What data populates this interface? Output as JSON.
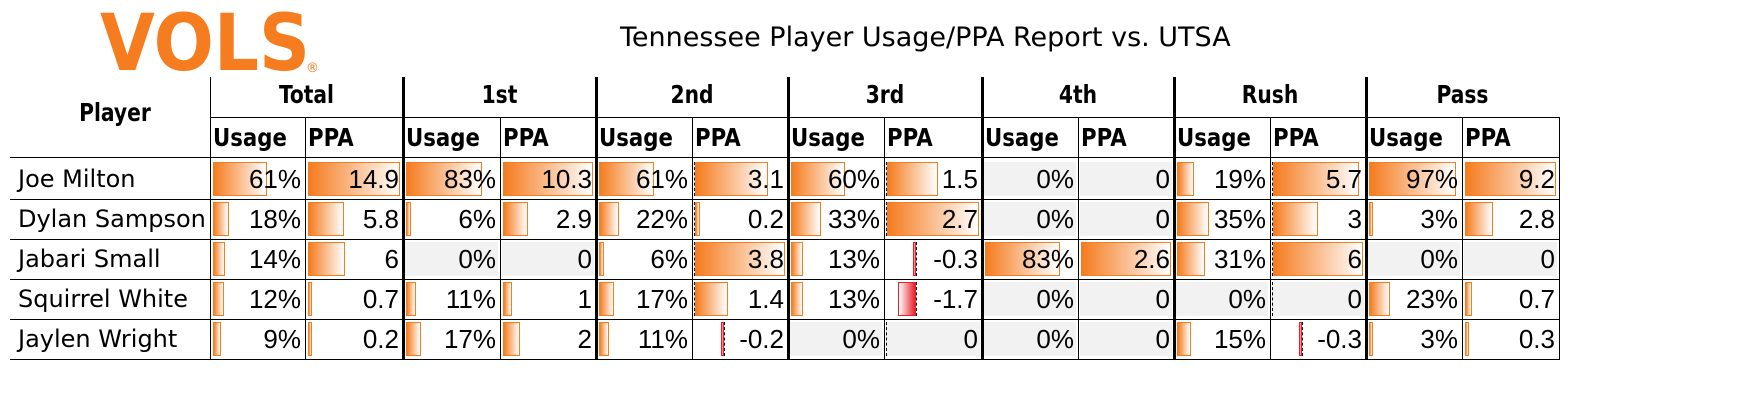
{
  "logo_text": "VOLS",
  "logo_mark": "®",
  "title": "Tennessee Player Usage/PPA Report vs. UTSA",
  "player_header": "Player",
  "sub_labels": [
    "Usage",
    "PPA"
  ],
  "groups": [
    "Total",
    "1st",
    "2nd",
    "3rd",
    "4th",
    "Rush",
    "Pass"
  ],
  "colors": {
    "accent": "#f57c1f",
    "negative": "#e8202a",
    "empty": "#f2f2f2"
  },
  "chart_data": {
    "type": "table",
    "title": "Tennessee Player Usage/PPA Report vs. UTSA",
    "columns": [
      "Player",
      "Total Usage",
      "Total PPA",
      "1st Usage",
      "1st PPA",
      "2nd Usage",
      "2nd PPA",
      "3rd Usage",
      "3rd PPA",
      "4th Usage",
      "4th PPA",
      "Rush Usage",
      "Rush PPA",
      "Pass Usage",
      "Pass PPA"
    ],
    "rows": [
      {
        "player": "Joe Milton",
        "cells": [
          "61%",
          "14.9",
          "83%",
          "10.3",
          "61%",
          "3.1",
          "60%",
          "1.5",
          "0%",
          "0",
          "19%",
          "5.7",
          "97%",
          "9.2"
        ],
        "values": [
          61,
          14.9,
          83,
          10.3,
          61,
          3.1,
          60,
          1.5,
          0,
          0,
          19,
          5.7,
          97,
          9.2
        ]
      },
      {
        "player": "Dylan Sampson",
        "cells": [
          "18%",
          "5.8",
          "6%",
          "2.9",
          "22%",
          "0.2",
          "33%",
          "2.7",
          "0%",
          "0",
          "35%",
          "3",
          "3%",
          "2.8"
        ],
        "values": [
          18,
          5.8,
          6,
          2.9,
          22,
          0.2,
          33,
          2.7,
          0,
          0,
          35,
          3,
          3,
          2.8
        ]
      },
      {
        "player": "Jabari Small",
        "cells": [
          "14%",
          "6",
          "0%",
          "0",
          "6%",
          "3.8",
          "13%",
          "-0.3",
          "83%",
          "2.6",
          "31%",
          "6",
          "0%",
          "0"
        ],
        "values": [
          14,
          6,
          0,
          0,
          6,
          3.8,
          13,
          -0.3,
          83,
          2.6,
          31,
          6,
          0,
          0
        ]
      },
      {
        "player": "Squirrel White",
        "cells": [
          "12%",
          "0.7",
          "11%",
          "1",
          "17%",
          "1.4",
          "13%",
          "-1.7",
          "0%",
          "0",
          "0%",
          "0",
          "23%",
          "0.7"
        ],
        "values": [
          12,
          0.7,
          11,
          1,
          17,
          1.4,
          13,
          -1.7,
          0,
          0,
          0,
          0,
          23,
          0.7
        ]
      },
      {
        "player": "Jaylen Wright",
        "cells": [
          "9%",
          "0.2",
          "17%",
          "2",
          "11%",
          "-0.2",
          "0%",
          "0",
          "0%",
          "0",
          "15%",
          "-0.3",
          "3%",
          "0.3"
        ],
        "values": [
          9,
          0.2,
          17,
          2,
          11,
          -0.2,
          0,
          0,
          0,
          0,
          15,
          -0.3,
          3,
          0.3
        ]
      }
    ]
  }
}
